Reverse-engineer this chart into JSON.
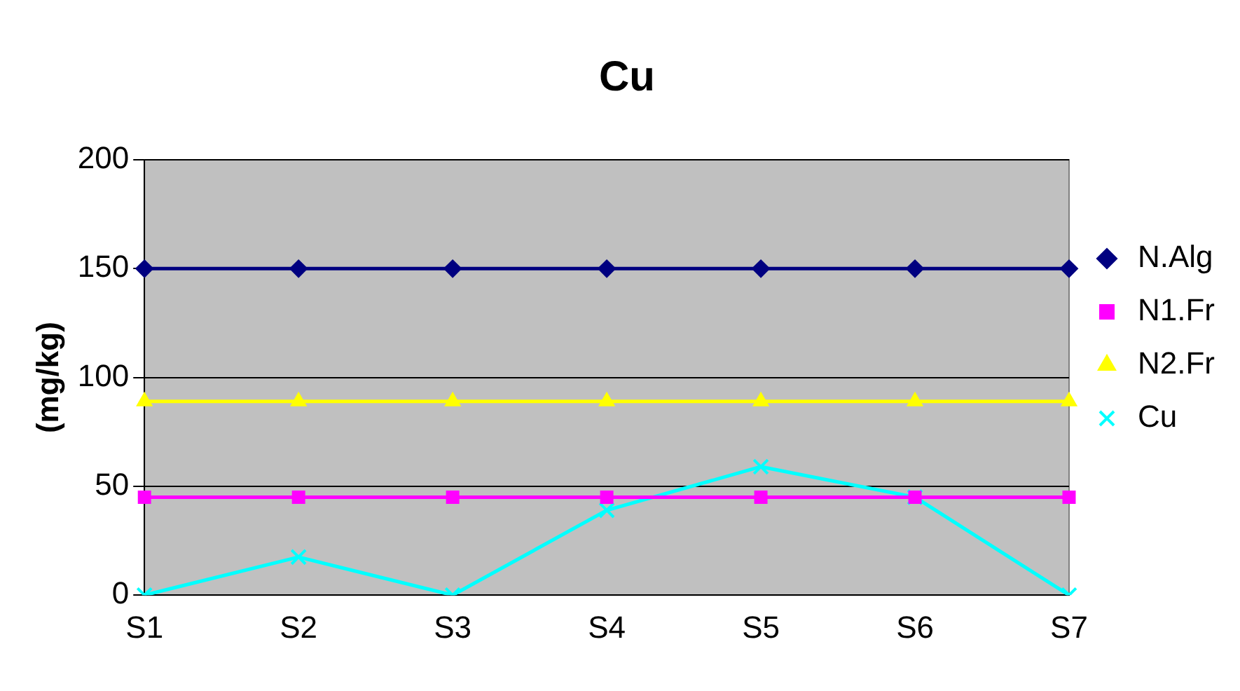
{
  "chart_data": {
    "type": "line",
    "title": "Cu",
    "ylabel": "(mg/kg)",
    "categories": [
      "S1",
      "S2",
      "S3",
      "S4",
      "S5",
      "S6",
      "S7"
    ],
    "series": [
      {
        "name": "N.Alg",
        "color": "#000080",
        "marker": "diamond",
        "values": [
          150,
          150,
          150,
          150,
          150,
          150,
          150
        ]
      },
      {
        "name": "N1.Fr",
        "color": "#ff00ff",
        "marker": "square",
        "values": [
          45,
          45,
          45,
          45,
          45,
          45,
          45
        ]
      },
      {
        "name": "N2.Fr",
        "color": "#ffff00",
        "marker": "triangle",
        "values": [
          89,
          89,
          89,
          89,
          89,
          89,
          89
        ]
      },
      {
        "name": "Cu",
        "color": "#00ffff",
        "marker": "cross",
        "values": [
          0,
          17.5,
          0,
          39,
          59,
          45,
          0
        ]
      }
    ],
    "ylim": [
      0,
      200
    ],
    "yticks": [
      0,
      50,
      100,
      150,
      200
    ],
    "grid": "y",
    "legend": "right"
  }
}
